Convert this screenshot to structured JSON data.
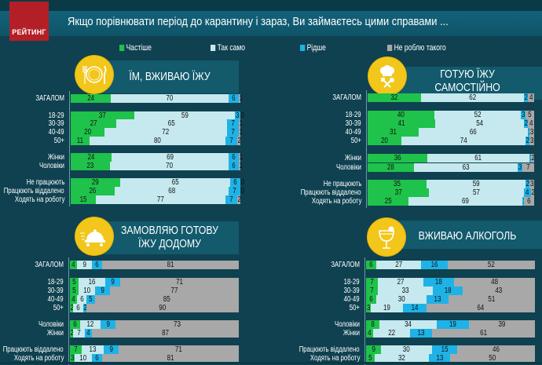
{
  "header": {
    "logo_text": "РЕЙТИНГ",
    "title": "Якщо порівнювати  період до карантину і зараз, Ви займаєтесь цими справами  ..."
  },
  "colors": {
    "more": "#1fc24a",
    "same": "#c5e9ee",
    "less": "#1fb2e6",
    "none": "#a8a8a8",
    "icon_bg": "#f2c61a",
    "logo_bg": "#b41f27"
  },
  "legend": [
    {
      "key": "more",
      "label": "Частіше"
    },
    {
      "key": "same",
      "label": "Так само"
    },
    {
      "key": "less",
      "label": "Рідше"
    },
    {
      "key": "none",
      "label": "Не роблю такого"
    }
  ],
  "chart_data": [
    {
      "type": "bar",
      "orientation": "horizontal-stacked-100",
      "title": "ЇМ, ВЖИВАЮ ЇЖУ",
      "icon": "plate-cutlery-icon",
      "series_names": [
        "Частіше",
        "Так само",
        "Рідше",
        "Не роблю такого"
      ],
      "categories": [
        "ЗАГАЛОМ",
        "18-29",
        "30-39",
        "40-49",
        "50+",
        "Жінки",
        "Чоловіки",
        "Не працюють",
        "Працюють віддалено",
        "Ходять на роботу"
      ],
      "groups": [
        [
          0
        ],
        [
          1,
          2,
          3,
          4
        ],
        [
          5,
          6
        ],
        [
          7,
          8,
          9
        ]
      ],
      "values": [
        [
          24,
          70,
          6,
          1
        ],
        [
          37,
          59,
          3,
          0
        ],
        [
          27,
          65,
          7,
          1
        ],
        [
          20,
          72,
          7,
          1
        ],
        [
          11,
          80,
          7,
          2
        ],
        [
          24,
          69,
          6,
          1
        ],
        [
          23,
          70,
          6,
          1
        ],
        [
          29,
          65,
          6,
          0
        ],
        [
          26,
          68,
          7,
          0
        ],
        [
          15,
          77,
          7,
          2
        ]
      ]
    },
    {
      "type": "bar",
      "orientation": "horizontal-stacked-100",
      "title": "ГОТУЮ ЇЖУ САМОСТІЙНО",
      "icon": "chef-hat-icon",
      "series_names": [
        "Частіше",
        "Так само",
        "Рідше",
        "Не роблю такого"
      ],
      "categories": [
        "ЗАГАЛОМ",
        "18-29",
        "30-39",
        "40-49",
        "50+",
        "Жінки",
        "Чоловіки",
        "Не працюють",
        "Працюють віддалено",
        "Ходять на роботу"
      ],
      "groups": [
        [
          0
        ],
        [
          1,
          2,
          3,
          4
        ],
        [
          5,
          6
        ],
        [
          7,
          8,
          9
        ]
      ],
      "values": [
        [
          32,
          62,
          2,
          4
        ],
        [
          40,
          52,
          3,
          5
        ],
        [
          41,
          54,
          2,
          4
        ],
        [
          31,
          66,
          1,
          3
        ],
        [
          20,
          74,
          2,
          3
        ],
        [
          36,
          61,
          1,
          2
        ],
        [
          28,
          63,
          3,
          7
        ],
        [
          35,
          59,
          2,
          3
        ],
        [
          37,
          57,
          4,
          2
        ],
        [
          25,
          69,
          1,
          6
        ]
      ]
    },
    {
      "type": "bar",
      "orientation": "horizontal-stacked-100",
      "title": "ЗАМОВЛЯЮ ГОТОВУ ЇЖУ ДОДОМУ",
      "icon": "food-delivery-icon",
      "series_names": [
        "Частіше",
        "Так само",
        "Рідше",
        "Не роблю такого"
      ],
      "categories": [
        "ЗАГАЛОМ",
        "18-29",
        "30-39",
        "40-49",
        "50+",
        "Чоловіки",
        "Жінки",
        "Працюють віддалено",
        "Ходять на роботу"
      ],
      "groups": [
        [
          0
        ],
        [
          1,
          2,
          3,
          4
        ],
        [
          5,
          6
        ],
        [
          7,
          8
        ]
      ],
      "values": [
        [
          4,
          9,
          6,
          81
        ],
        [
          5,
          16,
          9,
          71
        ],
        [
          5,
          10,
          9,
          77
        ],
        [
          4,
          6,
          5,
          85
        ],
        [
          2,
          6,
          2,
          90
        ],
        [
          6,
          12,
          9,
          73
        ],
        [
          2,
          7,
          4,
          87
        ],
        [
          7,
          13,
          9,
          71
        ],
        [
          3,
          10,
          6,
          81
        ]
      ]
    },
    {
      "type": "bar",
      "orientation": "horizontal-stacked-100",
      "title": "ВЖИВАЮ АЛКОГОЛЬ",
      "icon": "wine-glass-icon",
      "series_names": [
        "Частіше",
        "Так само",
        "Рідше",
        "Не роблю такого"
      ],
      "categories": [
        "ЗАГАЛОМ",
        "18-29",
        "30-39",
        "40-49",
        "50+",
        "Чоловіки",
        "Жінки",
        "Працюють віддалено",
        "Ходять на роботу"
      ],
      "groups": [
        [
          0
        ],
        [
          1,
          2,
          3,
          4
        ],
        [
          5,
          6
        ],
        [
          7,
          8
        ]
      ],
      "values": [
        [
          6,
          27,
          16,
          52
        ],
        [
          7,
          27,
          18,
          48
        ],
        [
          7,
          33,
          18,
          43
        ],
        [
          6,
          30,
          13,
          51
        ],
        [
          3,
          19,
          14,
          64
        ],
        [
          8,
          34,
          19,
          39
        ],
        [
          4,
          22,
          13,
          61
        ],
        [
          9,
          30,
          15,
          46
        ],
        [
          5,
          32,
          13,
          50
        ]
      ]
    }
  ]
}
